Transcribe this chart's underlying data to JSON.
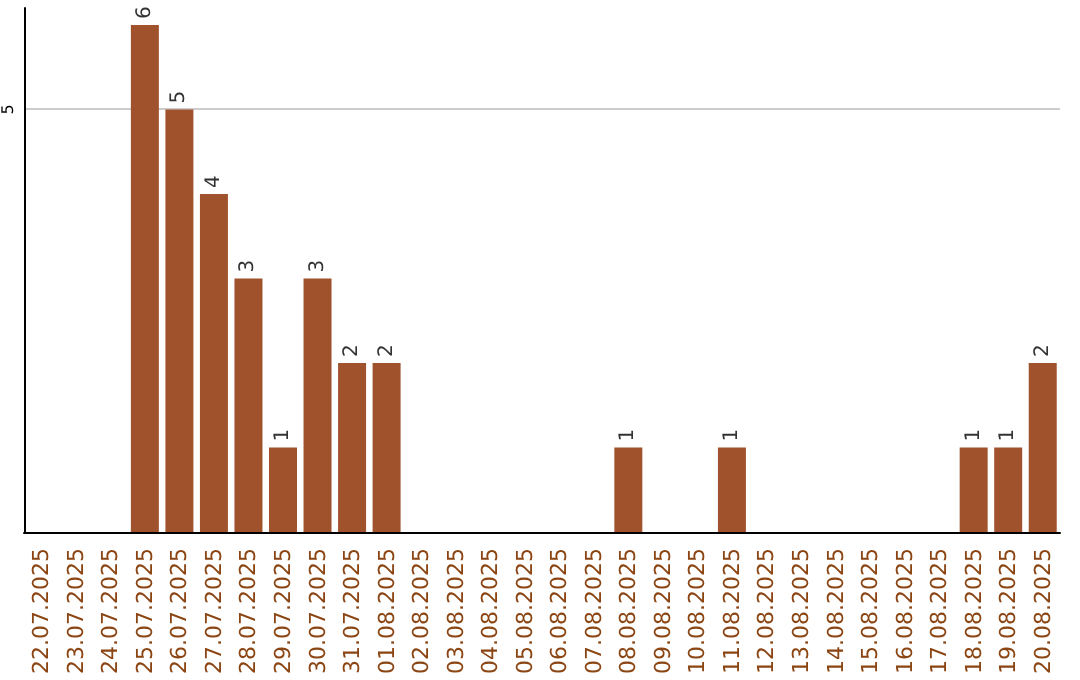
{
  "chart_data": {
    "type": "bar",
    "categories": [
      "22.07.2025",
      "23.07.2025",
      "24.07.2025",
      "25.07.2025",
      "26.07.2025",
      "27.07.2025",
      "28.07.2025",
      "29.07.2025",
      "30.07.2025",
      "31.07.2025",
      "01.08.2025",
      "02.08.2025",
      "03.08.2025",
      "04.08.2025",
      "05.08.2025",
      "06.08.2025",
      "07.08.2025",
      "08.08.2025",
      "09.08.2025",
      "10.08.2025",
      "11.08.2025",
      "12.08.2025",
      "13.08.2025",
      "14.08.2025",
      "15.08.2025",
      "16.08.2025",
      "17.08.2025",
      "18.08.2025",
      "19.08.2025",
      "20.08.2025"
    ],
    "values": [
      0,
      0,
      0,
      6,
      5,
      4,
      3,
      1,
      3,
      2,
      2,
      0,
      0,
      0,
      0,
      0,
      0,
      1,
      0,
      0,
      1,
      0,
      0,
      0,
      0,
      0,
      0,
      1,
      1,
      2
    ],
    "value_labels": [
      null,
      null,
      null,
      "6",
      "5",
      "4",
      "3",
      "1",
      "3",
      "2",
      "2",
      null,
      null,
      null,
      null,
      null,
      null,
      "1",
      null,
      null,
      "1",
      null,
      null,
      null,
      null,
      null,
      null,
      "1",
      "1",
      "2"
    ],
    "color": "#a0522d",
    "ylim": [
      0,
      6.2
    ],
    "yticks": [
      5
    ],
    "grid": "y"
  }
}
